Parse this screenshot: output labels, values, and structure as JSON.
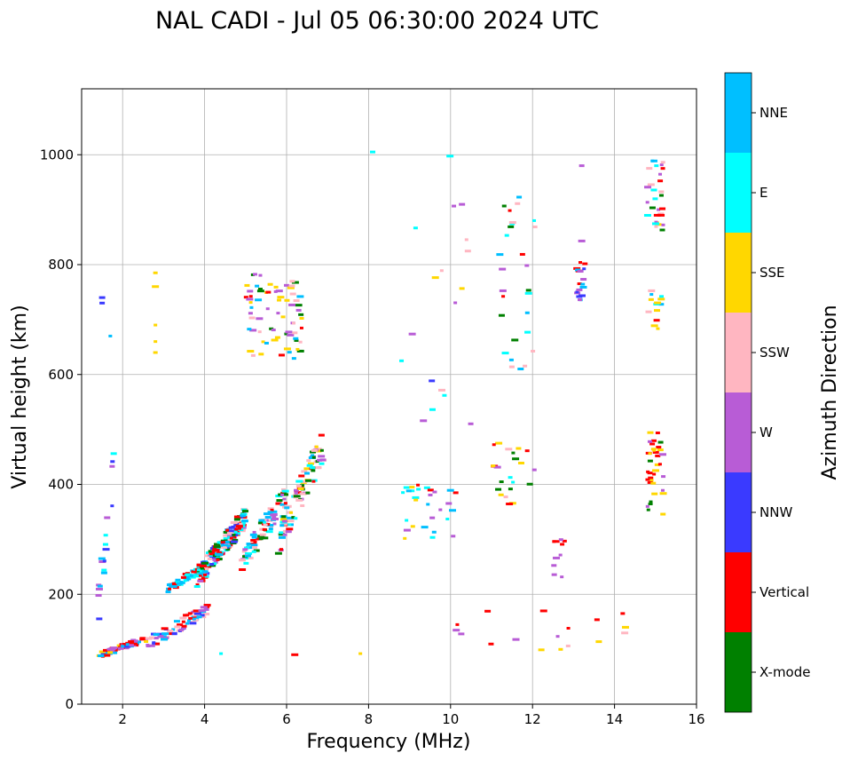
{
  "chart_data": {
    "type": "scatter",
    "title": "NAL CADI - Jul 05 06:30:00 2024 UTC",
    "xlabel": "Frequency (MHz)",
    "ylabel": "Virtual height (km)",
    "xlim": [
      1,
      16
    ],
    "ylim": [
      0,
      1120
    ],
    "xticks": [
      2,
      4,
      6,
      8,
      10,
      12,
      14,
      16
    ],
    "yticks": [
      0,
      200,
      400,
      600,
      800,
      1000
    ],
    "grid": true,
    "colorbar": {
      "label": "Azimuth Direction",
      "categories": [
        {
          "name": "X-mode",
          "color": "#008000"
        },
        {
          "name": "Vertical",
          "color": "#ff0000"
        },
        {
          "name": "NNW",
          "color": "#3a3aff"
        },
        {
          "name": "W",
          "color": "#b85cd6"
        },
        {
          "name": "SSW",
          "color": "#ffb6c1"
        },
        {
          "name": "SSE",
          "color": "#ffd700"
        },
        {
          "name": "E",
          "color": "#00ffff"
        },
        {
          "name": "NNE",
          "color": "#00bfff"
        }
      ]
    },
    "clusters": [
      {
        "region": "low E trace",
        "f_range": [
          1.4,
          2.6
        ],
        "h_range": [
          88,
          120
        ],
        "n": 70,
        "dir": [
          "Vertical",
          "Vertical",
          "SSE",
          "NNE",
          "W",
          "NNW"
        ]
      },
      {
        "region": "low F trace A",
        "f_range": [
          2.6,
          4.1
        ],
        "h_range": [
          110,
          175
        ],
        "n": 70,
        "dir": [
          "NNE",
          "W",
          "SSW",
          "Vertical",
          "NNW"
        ]
      },
      {
        "region": "low F trace B",
        "f_range": [
          3.1,
          4.0
        ],
        "h_range": [
          210,
          250
        ],
        "n": 60,
        "dir": [
          "NNE",
          "NNE",
          "E",
          "Vertical"
        ]
      },
      {
        "region": "F trace",
        "f_range": [
          3.8,
          5.0
        ],
        "h_range": [
          230,
          340
        ],
        "n": 200,
        "dir": [
          "Vertical",
          "Vertical",
          "NNE",
          "W",
          "SSW",
          "X-mode",
          "NNW",
          "E"
        ]
      },
      {
        "region": "F trace upper",
        "f_range": [
          4.9,
          6.0
        ],
        "h_range": [
          260,
          380
        ],
        "n": 80,
        "dir": [
          "X-mode",
          "SSW",
          "W",
          "Vertical",
          "E",
          "NNE"
        ]
      },
      {
        "region": "F cusp",
        "f_range": [
          5.8,
          6.9
        ],
        "h_range": [
          300,
          470
        ],
        "n": 90,
        "dir": [
          "SSW",
          "W",
          "SSE",
          "NNE",
          "Vertical",
          "X-mode",
          "E"
        ]
      },
      {
        "region": "multi-hop F",
        "f_range": [
          5.0,
          6.4
        ],
        "h_range": [
          620,
          785
        ],
        "n": 70,
        "dir": [
          "X-mode",
          "X-mode",
          "NNE",
          "W",
          "SSW",
          "Vertical",
          "SSE"
        ]
      },
      {
        "region": "O-trace 1.5MHz",
        "f_range": [
          1.4,
          1.8
        ],
        "h_range": [
          170,
          430
        ],
        "n": 18,
        "dir": [
          "NNE",
          "E",
          "NNW",
          "W"
        ]
      },
      {
        "region": "stack 15MHz high",
        "f_range": [
          14.8,
          15.2
        ],
        "h_range": [
          850,
          995
        ],
        "n": 30,
        "dir": [
          "Vertical",
          "E",
          "SSE",
          "X-mode",
          "SSW",
          "NNE",
          "W"
        ]
      },
      {
        "region": "stack 15MHz mid",
        "f_range": [
          14.8,
          15.2
        ],
        "h_range": [
          680,
          755
        ],
        "n": 14,
        "dir": [
          "Vertical",
          "E",
          "SSW",
          "SSE",
          "NNE"
        ]
      },
      {
        "region": "stack 15MHz low",
        "f_range": [
          14.8,
          15.2
        ],
        "h_range": [
          345,
          495
        ],
        "n": 36,
        "dir": [
          "Vertical",
          "Vertical",
          "SSE",
          "X-mode",
          "W"
        ]
      },
      {
        "region": "stack 13MHz",
        "f_range": [
          13.0,
          13.3
        ],
        "h_range": [
          735,
          808
        ],
        "n": 18,
        "dir": [
          "NNW",
          "W",
          "Vertical",
          "NNE"
        ]
      },
      {
        "region": "scatter 10MHz",
        "f_range": [
          8.8,
          10.2
        ],
        "h_range": [
          300,
          400
        ],
        "n": 30,
        "dir": [
          "E",
          "NNE",
          "SSW",
          "Vertical",
          "SSE",
          "W"
        ]
      },
      {
        "region": "scatter 11-12MHz",
        "f_range": [
          11.0,
          12.1
        ],
        "h_range": [
          360,
          480
        ],
        "n": 22,
        "dir": [
          "W",
          "X-mode",
          "SSE",
          "E",
          "Vertical",
          "SSW",
          "NNE"
        ]
      },
      {
        "region": "scatter 12.5MHz",
        "f_range": [
          12.5,
          12.8
        ],
        "h_range": [
          225,
          305
        ],
        "n": 10,
        "dir": [
          "W",
          "W",
          "Vertical"
        ]
      },
      {
        "region": "diffuse 11-12MHz high",
        "f_range": [
          11.2,
          12.1
        ],
        "h_range": [
          600,
          925
        ],
        "n": 28,
        "dir": [
          "Vertical",
          "E",
          "SSW",
          "X-mode",
          "NNE",
          "W"
        ]
      },
      {
        "region": "diffuse mid",
        "f_range": [
          8.8,
          10.5
        ],
        "h_range": [
          480,
          1010
        ],
        "n": 18,
        "dir": [
          "E",
          "SSE",
          "SSW",
          "NNW",
          "W"
        ]
      },
      {
        "region": "low E scatter",
        "f_range": [
          9.9,
          14.4
        ],
        "h_range": [
          85,
          170
        ],
        "n": 16,
        "dir": [
          "Vertical",
          "W",
          "SSE",
          "SSW",
          "Vertical"
        ]
      }
    ],
    "isolated_points": [
      {
        "f": 2.8,
        "h": 640,
        "dir": "SSE"
      },
      {
        "f": 2.8,
        "h": 660,
        "dir": "SSE"
      },
      {
        "f": 2.8,
        "h": 690,
        "dir": "SSE"
      },
      {
        "f": 2.8,
        "h": 760,
        "dir": "SSE"
      },
      {
        "f": 2.8,
        "h": 785,
        "dir": "SSE"
      },
      {
        "f": 1.5,
        "h": 740,
        "dir": "NNW"
      },
      {
        "f": 1.5,
        "h": 730,
        "dir": "NNW"
      },
      {
        "f": 1.7,
        "h": 670,
        "dir": "NNE"
      },
      {
        "f": 8.1,
        "h": 1005,
        "dir": "E"
      },
      {
        "f": 13.2,
        "h": 980,
        "dir": "W"
      },
      {
        "f": 13.2,
        "h": 843,
        "dir": "W"
      },
      {
        "f": 4.4,
        "h": 92,
        "dir": "E"
      },
      {
        "f": 6.2,
        "h": 90,
        "dir": "Vertical"
      },
      {
        "f": 7.8,
        "h": 92,
        "dir": "SSE"
      },
      {
        "f": 14.2,
        "h": 165,
        "dir": "Vertical"
      }
    ]
  }
}
